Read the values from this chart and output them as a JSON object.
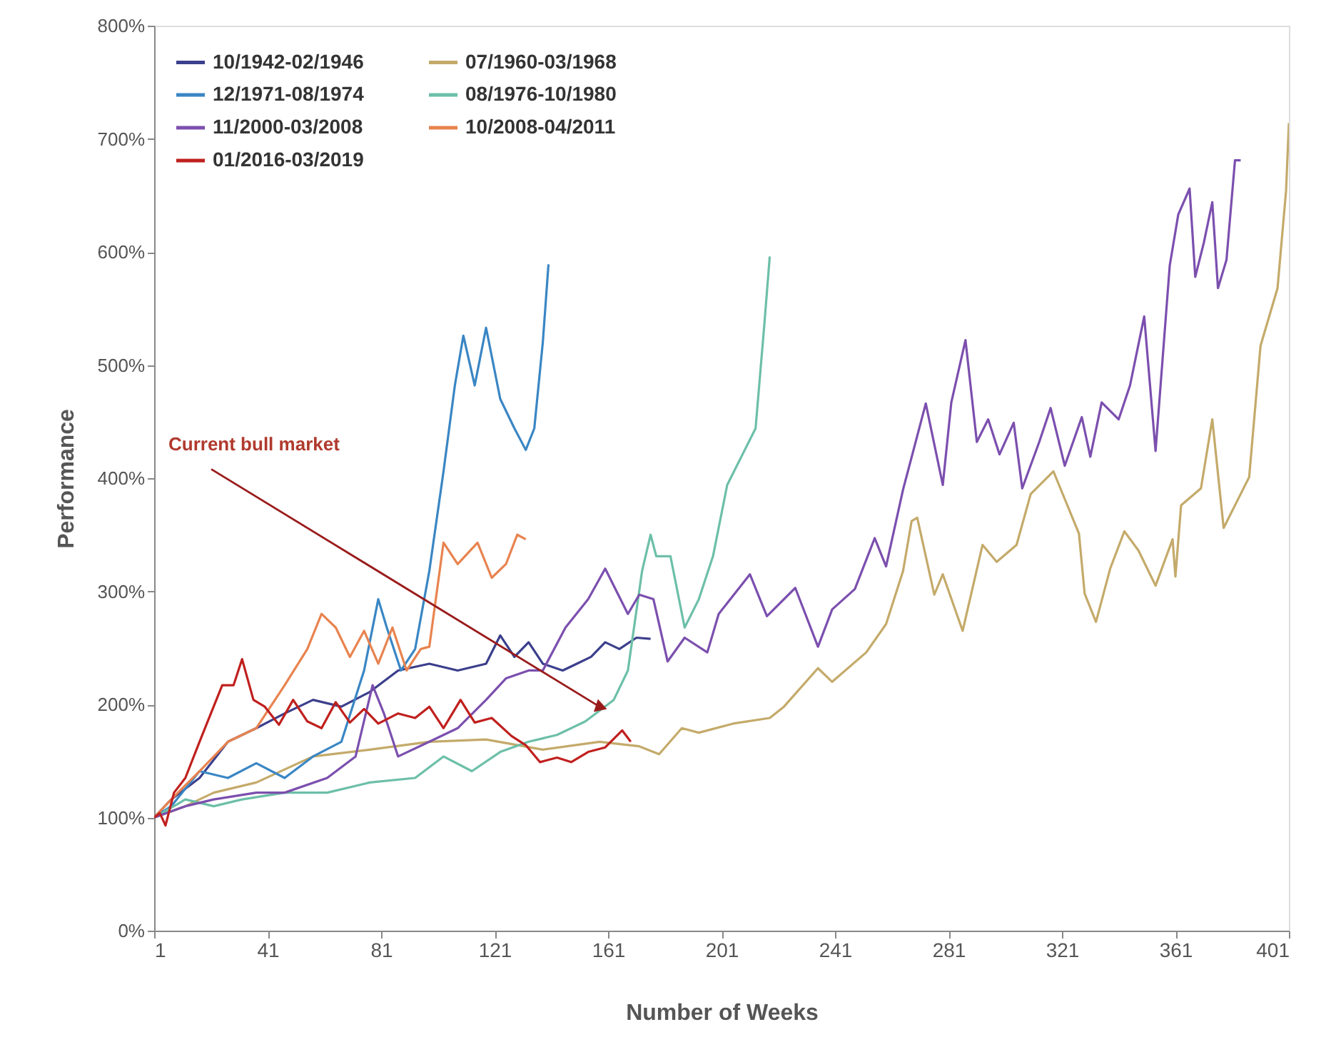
{
  "chart_data": {
    "type": "line",
    "xlabel": "Number of Weeks",
    "ylabel": "Performance",
    "xlim": [
      1,
      401
    ],
    "xticks": [
      1,
      41,
      81,
      121,
      161,
      201,
      241,
      281,
      321,
      361,
      401
    ],
    "ylim": [
      0,
      800
    ],
    "yticks": [
      {
        "value": 0,
        "label": "0%"
      },
      {
        "value": 100,
        "label": "100%"
      },
      {
        "value": 200,
        "label": "200%"
      },
      {
        "value": 300,
        "label": "300%"
      },
      {
        "value": 400,
        "label": "400%"
      },
      {
        "value": 500,
        "label": "500%"
      },
      {
        "value": 600,
        "label": "600%"
      },
      {
        "value": 700,
        "label": "700%"
      },
      {
        "value": 800,
        "label": "800%"
      }
    ],
    "grid": false,
    "legend": "top left",
    "marker": "none",
    "line_style": "solid",
    "annotations": [
      {
        "text": "Current bull market",
        "x": 158,
        "y": 198
      }
    ],
    "series": [
      {
        "name": "10/1942-02/1946",
        "color": "#3b3f8c",
        "x": [
          1,
          7,
          17,
          27,
          37,
          47,
          57,
          67,
          77,
          87,
          98,
          108,
          118,
          123,
          128,
          133,
          138,
          145,
          150,
          155,
          160,
          165,
          171,
          176
        ],
        "values": [
          100,
          116,
          135,
          167,
          179,
          192,
          204,
          198,
          211,
          230,
          236,
          230,
          236,
          261,
          242,
          255,
          236,
          230,
          236,
          242,
          255,
          249,
          259,
          258
        ]
      },
      {
        "name": "07/1960-03/1968",
        "color": "#c4aa6a",
        "x": [
          1,
          12,
          22,
          37,
          57,
          77,
          98,
          118,
          138,
          158,
          172,
          179,
          187,
          193,
          205,
          218,
          223,
          235,
          240,
          252,
          259,
          265,
          268,
          270,
          276,
          279,
          286,
          293,
          298,
          305,
          310,
          318,
          327,
          329,
          333,
          338,
          343,
          348,
          354,
          360,
          361,
          363,
          370,
          374,
          378,
          383,
          387,
          391,
          397,
          400,
          401
        ],
        "values": [
          100,
          110,
          122,
          131,
          154,
          160,
          167,
          169,
          160,
          167,
          163,
          156,
          179,
          175,
          183,
          188,
          198,
          232,
          220,
          246,
          271,
          318,
          362,
          365,
          297,
          315,
          265,
          341,
          326,
          341,
          386,
          406,
          351,
          298,
          273,
          320,
          353,
          336,
          305,
          346,
          313,
          376,
          391,
          452,
          356,
          381,
          401,
          517,
          568,
          654,
          714
        ]
      },
      {
        "name": "12/1971-08/1974",
        "color": "#3a86c4",
        "x": [
          1,
          7,
          17,
          27,
          37,
          47,
          57,
          67,
          75,
          80,
          83,
          88,
          93,
          98,
          103,
          107,
          110,
          114,
          118,
          123,
          128,
          132,
          135,
          138,
          140
        ],
        "values": [
          100,
          110,
          141,
          135,
          148,
          135,
          154,
          167,
          230,
          293,
          268,
          230,
          249,
          318,
          406,
          482,
          526,
          482,
          533,
          470,
          444,
          425,
          444,
          520,
          589
        ]
      },
      {
        "name": "08/1976-10/1980",
        "color": "#6cbfa8",
        "x": [
          1,
          12,
          22,
          32,
          47,
          62,
          77,
          93,
          103,
          113,
          123,
          133,
          143,
          153,
          163,
          168,
          173,
          176,
          178,
          183,
          188,
          193,
          198,
          203,
          208,
          213,
          216,
          218
        ],
        "values": [
          100,
          116,
          110,
          116,
          122,
          122,
          131,
          135,
          154,
          141,
          158,
          167,
          173,
          185,
          204,
          230,
          318,
          350,
          331,
          331,
          268,
          293,
          331,
          394,
          419,
          444,
          533,
          596
        ]
      },
      {
        "name": "11/2000-03/2008",
        "color": "#7b4fae",
        "x": [
          1,
          12,
          22,
          37,
          47,
          62,
          72,
          78,
          82,
          87,
          98,
          108,
          118,
          125,
          133,
          138,
          146,
          154,
          160,
          168,
          172,
          177,
          182,
          188,
          196,
          200,
          211,
          217,
          227,
          235,
          240,
          248,
          255,
          259,
          265,
          273,
          279,
          282,
          287,
          291,
          295,
          299,
          304,
          307,
          313,
          317,
          322,
          328,
          331,
          335,
          341,
          345,
          350,
          354,
          359,
          362,
          366,
          368,
          371,
          374,
          376,
          379,
          382,
          384
        ],
        "values": [
          100,
          110,
          116,
          122,
          122,
          135,
          154,
          217,
          192,
          154,
          167,
          179,
          204,
          223,
          230,
          230,
          268,
          293,
          320,
          280,
          297,
          293,
          238,
          259,
          246,
          280,
          315,
          278,
          303,
          251,
          284,
          302,
          347,
          322,
          390,
          466,
          394,
          467,
          522,
          432,
          452,
          421,
          449,
          391,
          432,
          462,
          411,
          454,
          419,
          467,
          452,
          482,
          543,
          424,
          588,
          633,
          656,
          578,
          608,
          644,
          568,
          593,
          681,
          681
        ]
      },
      {
        "name": "10/2008-04/2011",
        "color": "#e8834f",
        "x": [
          1,
          7,
          17,
          27,
          37,
          47,
          55,
          60,
          65,
          70,
          75,
          80,
          85,
          90,
          95,
          98,
          103,
          108,
          115,
          120,
          125,
          129,
          132
        ],
        "values": [
          100,
          116,
          141,
          167,
          179,
          217,
          249,
          280,
          268,
          242,
          265,
          236,
          268,
          230,
          249,
          251,
          343,
          324,
          343,
          312,
          324,
          350,
          346
        ]
      },
      {
        "name": "01/2016-03/2019",
        "color": "#c0201e",
        "x": [
          1,
          3,
          5,
          8,
          12,
          17,
          21,
          25,
          29,
          32,
          36,
          40,
          45,
          50,
          55,
          60,
          65,
          70,
          75,
          80,
          87,
          93,
          98,
          103,
          109,
          114,
          120,
          127,
          132,
          137,
          143,
          148,
          154,
          160,
          166,
          169
        ],
        "values": [
          100,
          104,
          93,
          122,
          135,
          167,
          192,
          217,
          217,
          240,
          204,
          198,
          182,
          204,
          185,
          179,
          202,
          184,
          196,
          183,
          192,
          188,
          198,
          179,
          204,
          184,
          188,
          172,
          164,
          149,
          153,
          149,
          158,
          162,
          177,
          167
        ]
      }
    ]
  }
}
